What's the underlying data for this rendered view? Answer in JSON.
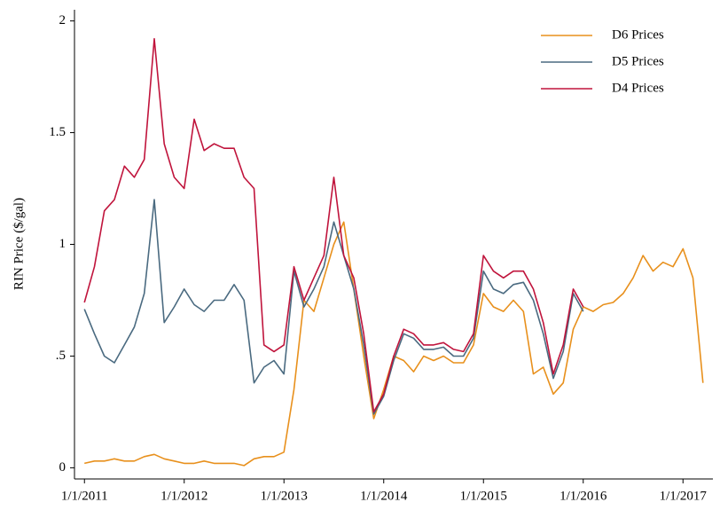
{
  "chart_data": {
    "type": "line",
    "y_label": "RIN Price ($/gal)",
    "x": [
      2011.0,
      2011.1,
      2011.2,
      2011.3,
      2011.4,
      2011.5,
      2011.6,
      2011.7,
      2011.8,
      2011.9,
      2012.0,
      2012.1,
      2012.2,
      2012.3,
      2012.4,
      2012.5,
      2012.6,
      2012.7,
      2012.8,
      2012.9,
      2013.0,
      2013.1,
      2013.2,
      2013.3,
      2013.4,
      2013.5,
      2013.6,
      2013.7,
      2013.8,
      2013.9,
      2014.0,
      2014.1,
      2014.2,
      2014.3,
      2014.4,
      2014.5,
      2014.6,
      2014.7,
      2014.8,
      2014.9,
      2015.0,
      2015.1,
      2015.2,
      2015.3,
      2015.4,
      2015.5,
      2015.6,
      2015.7,
      2015.8,
      2015.9,
      2016.0,
      2016.1,
      2016.2,
      2016.3,
      2016.4,
      2016.5,
      2016.6,
      2016.7,
      2016.8,
      2016.9,
      2017.0,
      2017.1,
      2017.2
    ],
    "series": [
      {
        "name": "D6 Prices",
        "color": "#e8901c",
        "values": [
          0.02,
          0.03,
          0.03,
          0.04,
          0.03,
          0.03,
          0.05,
          0.06,
          0.04,
          0.03,
          0.02,
          0.02,
          0.03,
          0.02,
          0.02,
          0.02,
          0.01,
          0.04,
          0.05,
          0.05,
          0.07,
          0.35,
          0.75,
          0.7,
          0.85,
          1.0,
          1.1,
          0.8,
          0.5,
          0.22,
          0.35,
          0.5,
          0.48,
          0.43,
          0.5,
          0.48,
          0.5,
          0.47,
          0.47,
          0.55,
          0.78,
          0.72,
          0.7,
          0.75,
          0.7,
          0.42,
          0.45,
          0.33,
          0.38,
          0.62,
          0.72,
          0.7,
          0.73,
          0.74,
          0.78,
          0.85,
          0.95,
          0.88,
          0.92,
          0.9,
          0.98,
          0.85,
          0.38
        ]
      },
      {
        "name": "D5 Prices",
        "color": "#4a6a80",
        "values": [
          0.71,
          0.6,
          0.5,
          0.47,
          0.55,
          0.63,
          0.78,
          1.2,
          0.65,
          0.72,
          0.8,
          0.73,
          0.7,
          0.75,
          0.75,
          0.82,
          0.75,
          0.38,
          0.45,
          0.48,
          0.42,
          0.88,
          0.72,
          0.8,
          0.9,
          1.1,
          0.95,
          0.8,
          0.55,
          0.24,
          0.32,
          0.48,
          0.6,
          0.58,
          0.53,
          0.53,
          0.54,
          0.5,
          0.5,
          0.58,
          0.88,
          0.8,
          0.78,
          0.82,
          0.83,
          0.75,
          0.6,
          0.4,
          0.52,
          0.78,
          0.7,
          null,
          null,
          null,
          null,
          null,
          null,
          null,
          null,
          null,
          null,
          null,
          null
        ]
      },
      {
        "name": "D4 Prices",
        "color": "#c0143c",
        "values": [
          0.74,
          0.9,
          1.15,
          1.2,
          1.35,
          1.3,
          1.38,
          1.92,
          1.45,
          1.3,
          1.25,
          1.56,
          1.42,
          1.45,
          1.43,
          1.43,
          1.3,
          1.25,
          0.55,
          0.52,
          0.55,
          0.9,
          0.75,
          0.85,
          0.95,
          1.3,
          0.95,
          0.85,
          0.6,
          0.25,
          0.33,
          0.5,
          0.62,
          0.6,
          0.55,
          0.55,
          0.56,
          0.53,
          0.52,
          0.6,
          0.95,
          0.88,
          0.85,
          0.88,
          0.88,
          0.8,
          0.65,
          0.42,
          0.55,
          0.8,
          0.72,
          null,
          null,
          null,
          null,
          null,
          null,
          null,
          null,
          null,
          null,
          null,
          null
        ]
      }
    ],
    "xlim": [
      2010.9,
      2017.3
    ],
    "xticks": [
      {
        "value": 2011,
        "label": "1/1/2011"
      },
      {
        "value": 2012,
        "label": "1/1/2012"
      },
      {
        "value": 2013,
        "label": "1/1/2013"
      },
      {
        "value": 2014,
        "label": "1/1/2014"
      },
      {
        "value": 2015,
        "label": "1/1/2015"
      },
      {
        "value": 2016,
        "label": "1/1/2016"
      },
      {
        "value": 2017,
        "label": "1/1/2017"
      }
    ],
    "ylim": [
      -0.05,
      2.05
    ],
    "yticks": [
      0,
      {
        "value": 0.5,
        "label": ".5"
      },
      1,
      {
        "value": 1.5,
        "label": "1.5"
      },
      2
    ],
    "legend": "top-right",
    "grid": false
  }
}
